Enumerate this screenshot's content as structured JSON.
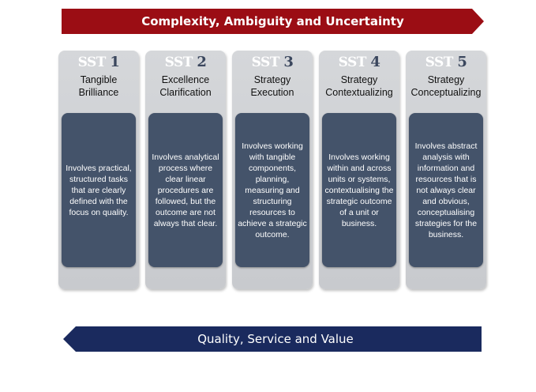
{
  "top_arrow": {
    "label": "Complexity, Ambiguity and Uncertainty",
    "color": "#9b0d14"
  },
  "bottom_arrow": {
    "label": "Quality, Service and Value",
    "color": "#1a2a5e"
  },
  "columns": [
    {
      "sst": "SST",
      "num": "1",
      "title": [
        "Tangible",
        "Brilliance"
      ],
      "description": "Involves practical, structured tasks that are clearly defined with the focus on quality."
    },
    {
      "sst": "SST",
      "num": "2",
      "title": [
        "Excellence",
        "Clarification"
      ],
      "description": "Involves analytical process where clear linear procedures are followed, but the outcome are not always that clear."
    },
    {
      "sst": "SST",
      "num": "3",
      "title": [
        "Strategy",
        "Execution"
      ],
      "description": "Involves working with tangible components, planning, measuring and structuring resources to achieve a strategic outcome."
    },
    {
      "sst": "SST",
      "num": "4",
      "title": [
        "Strategy",
        "Contextualizing"
      ],
      "description": "Involves working within and across units or systems, contextualising the strategic outcome of a unit or business."
    },
    {
      "sst": "SST",
      "num": "5",
      "title": [
        "Strategy",
        "Conceptualizing"
      ],
      "description": "Involves abstract analysis with information and resources that is not always clear and obvious, conceptualising strategies for the business."
    }
  ]
}
